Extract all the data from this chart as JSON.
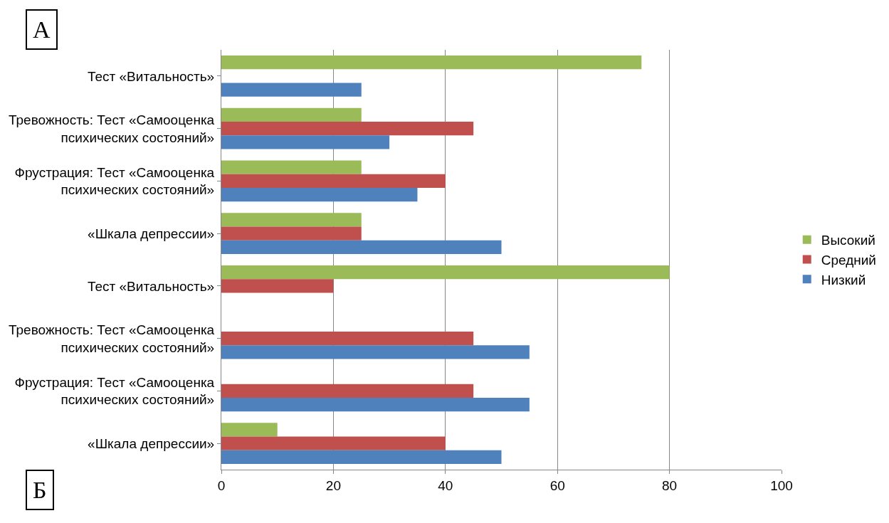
{
  "chart_data": {
    "type": "bar",
    "orientation": "horizontal",
    "categories": [
      "Тест «Витальность»",
      "Тревожность: Тест «Самооценка психических состояний»",
      "Фрустрация: Тест «Самооценка психических состояний»",
      "«Шкала депрессии»",
      "Тест «Витальность»",
      "Тревожность: Тест «Самооценка психических состояний»",
      "Фрустрация: Тест «Самооценка психических состояний»",
      "«Шкала депрессии»"
    ],
    "series": [
      {
        "name": "Высокий",
        "color": "#9bbb59",
        "values": [
          75,
          25,
          25,
          25,
          80,
          null,
          null,
          10
        ]
      },
      {
        "name": "Средний",
        "color": "#c0504d",
        "values": [
          null,
          45,
          40,
          25,
          20,
          45,
          45,
          40
        ]
      },
      {
        "name": "Низкий",
        "color": "#4f81bd",
        "values": [
          25,
          30,
          35,
          50,
          null,
          55,
          55,
          50
        ]
      }
    ],
    "xlim": [
      0,
      100
    ],
    "xticks": [
      0,
      20,
      40,
      60,
      80,
      100
    ],
    "grid": "x",
    "legend": "right",
    "annotations": [
      "А",
      "Б"
    ]
  }
}
